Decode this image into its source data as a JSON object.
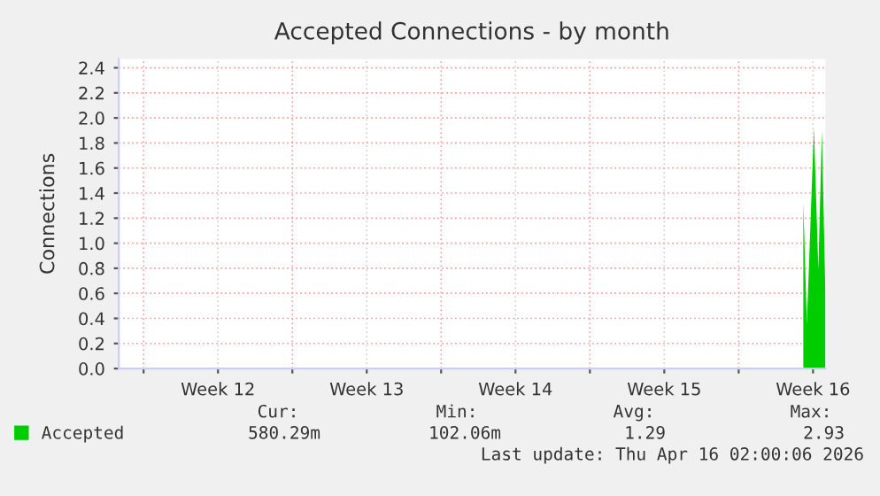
{
  "chart_data": {
    "type": "area",
    "title": "Accepted Connections - by month",
    "ylabel": "Connections",
    "xlim": [
      "2026-03-13T20:00",
      "2026-04-16T02:00"
    ],
    "ylim": [
      0,
      2.47
    ],
    "xticks": [
      {
        "value": "2026-03-15",
        "label": null
      },
      {
        "value": "2026-03-18T12:00",
        "label": "Week 12"
      },
      {
        "value": "2026-03-22",
        "label": null
      },
      {
        "value": "2026-03-25T12:00",
        "label": "Week 13"
      },
      {
        "value": "2026-03-29",
        "label": null
      },
      {
        "value": "2026-04-01T12:00",
        "label": "Week 14"
      },
      {
        "value": "2026-04-05",
        "label": null
      },
      {
        "value": "2026-04-08T12:00",
        "label": "Week 15"
      },
      {
        "value": "2026-04-12",
        "label": null
      },
      {
        "value": "2026-04-15T12:00",
        "label": "Week 16"
      }
    ],
    "yticks": [
      {
        "value": 0,
        "label": "0.0"
      },
      0.2,
      0.4,
      0.6,
      0.8,
      {
        "value": 1,
        "label": "1.0"
      },
      1.2,
      1.4,
      1.6,
      1.8,
      {
        "value": 2,
        "label": "2.0"
      },
      2.2,
      2.4
    ],
    "grid": true,
    "legend": "bottom left",
    "series": [
      {
        "name": "Accepted",
        "color": "#00cc00",
        "x": [
          "2026-04-15T01:00",
          "2026-04-15T05:00",
          "2026-04-15T13:00",
          "2026-04-15T18:00",
          "2026-04-15T22:00",
          "2026-04-16T02:00"
        ],
        "values": [
          1.33,
          0.35,
          1.92,
          0.79,
          1.9,
          0.58
        ]
      }
    ],
    "annotations": [
      "Cur:",
      "Min:",
      "Avg:",
      "Max:",
      "580.29m",
      "102.06m",
      "1.29",
      "2.93",
      "Last update: Thu Apr 16 02:00:06 2026"
    ]
  }
}
